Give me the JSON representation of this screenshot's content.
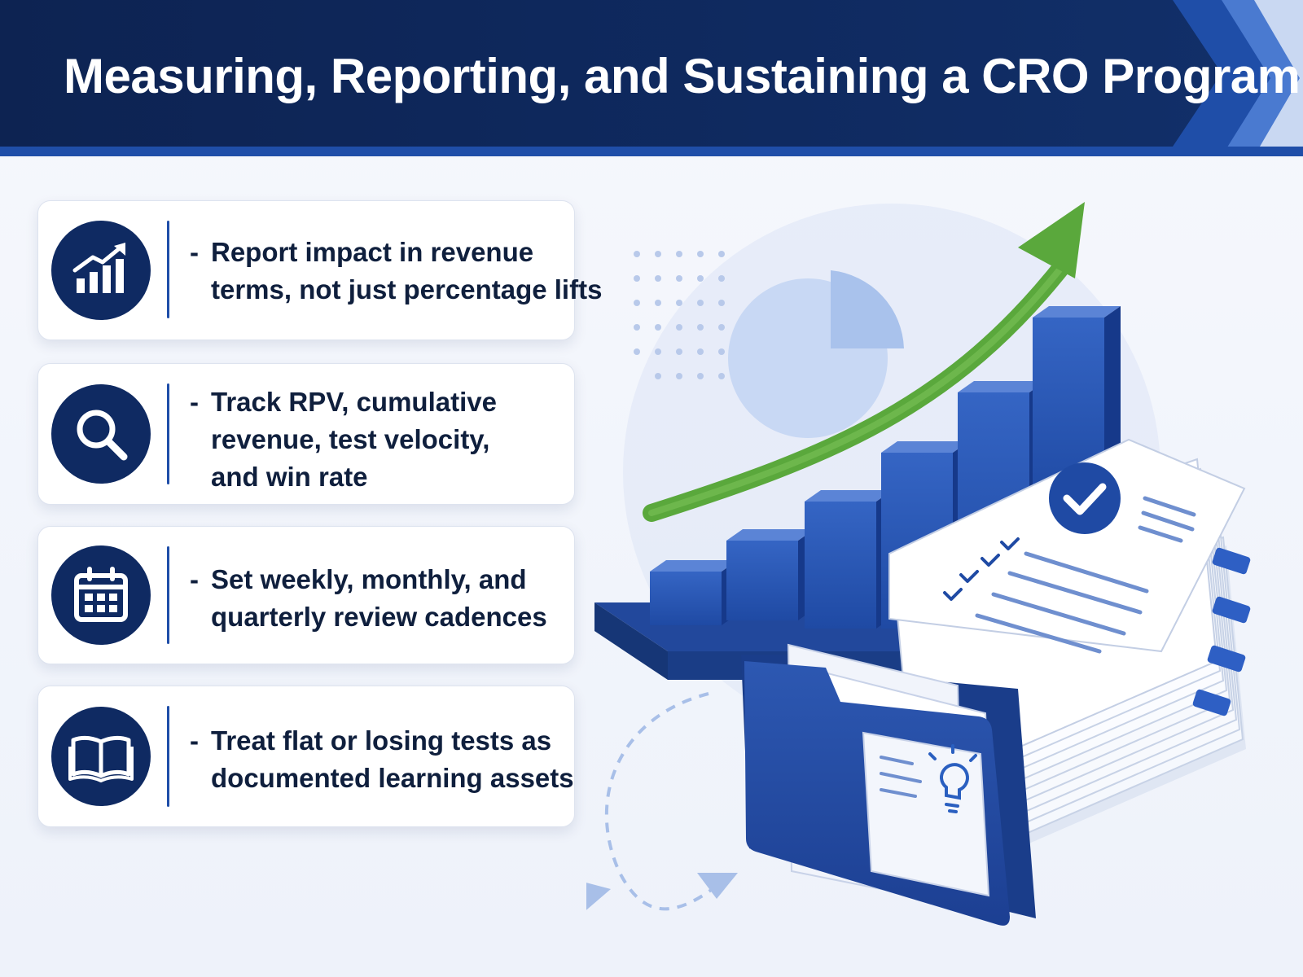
{
  "header": {
    "title": "Measuring, Reporting, and Sustaining a CRO Program"
  },
  "cards": [
    {
      "icon": "bar-chart-growth-icon",
      "dash": "-",
      "lines": [
        "Report impact in revenue",
        "terms, not just percentage lifts"
      ]
    },
    {
      "icon": "magnifier-icon",
      "dash": "-",
      "lines": [
        "Track RPV, cumulative",
        "revenue, test velocity,",
        "and win rate"
      ]
    },
    {
      "icon": "calendar-icon",
      "dash": "-",
      "lines": [
        "Set weekly, monthly, and",
        "quarterly review cadences"
      ]
    },
    {
      "icon": "open-book-icon",
      "dash": "-",
      "lines": [
        "Treat flat or losing tests as",
        "documented learning assets"
      ]
    }
  ],
  "illustration": {
    "icons": [
      "growth-arrow-icon",
      "pie-chart-icon",
      "bar-chart-icon",
      "report-documents-icon",
      "folder-icon",
      "lightbulb-icon",
      "check-icon"
    ]
  },
  "colors": {
    "navy": "#0f2a62",
    "blue": "#2f5bb5",
    "green": "#5aa83c",
    "light_blue": "#cfdcf5"
  }
}
